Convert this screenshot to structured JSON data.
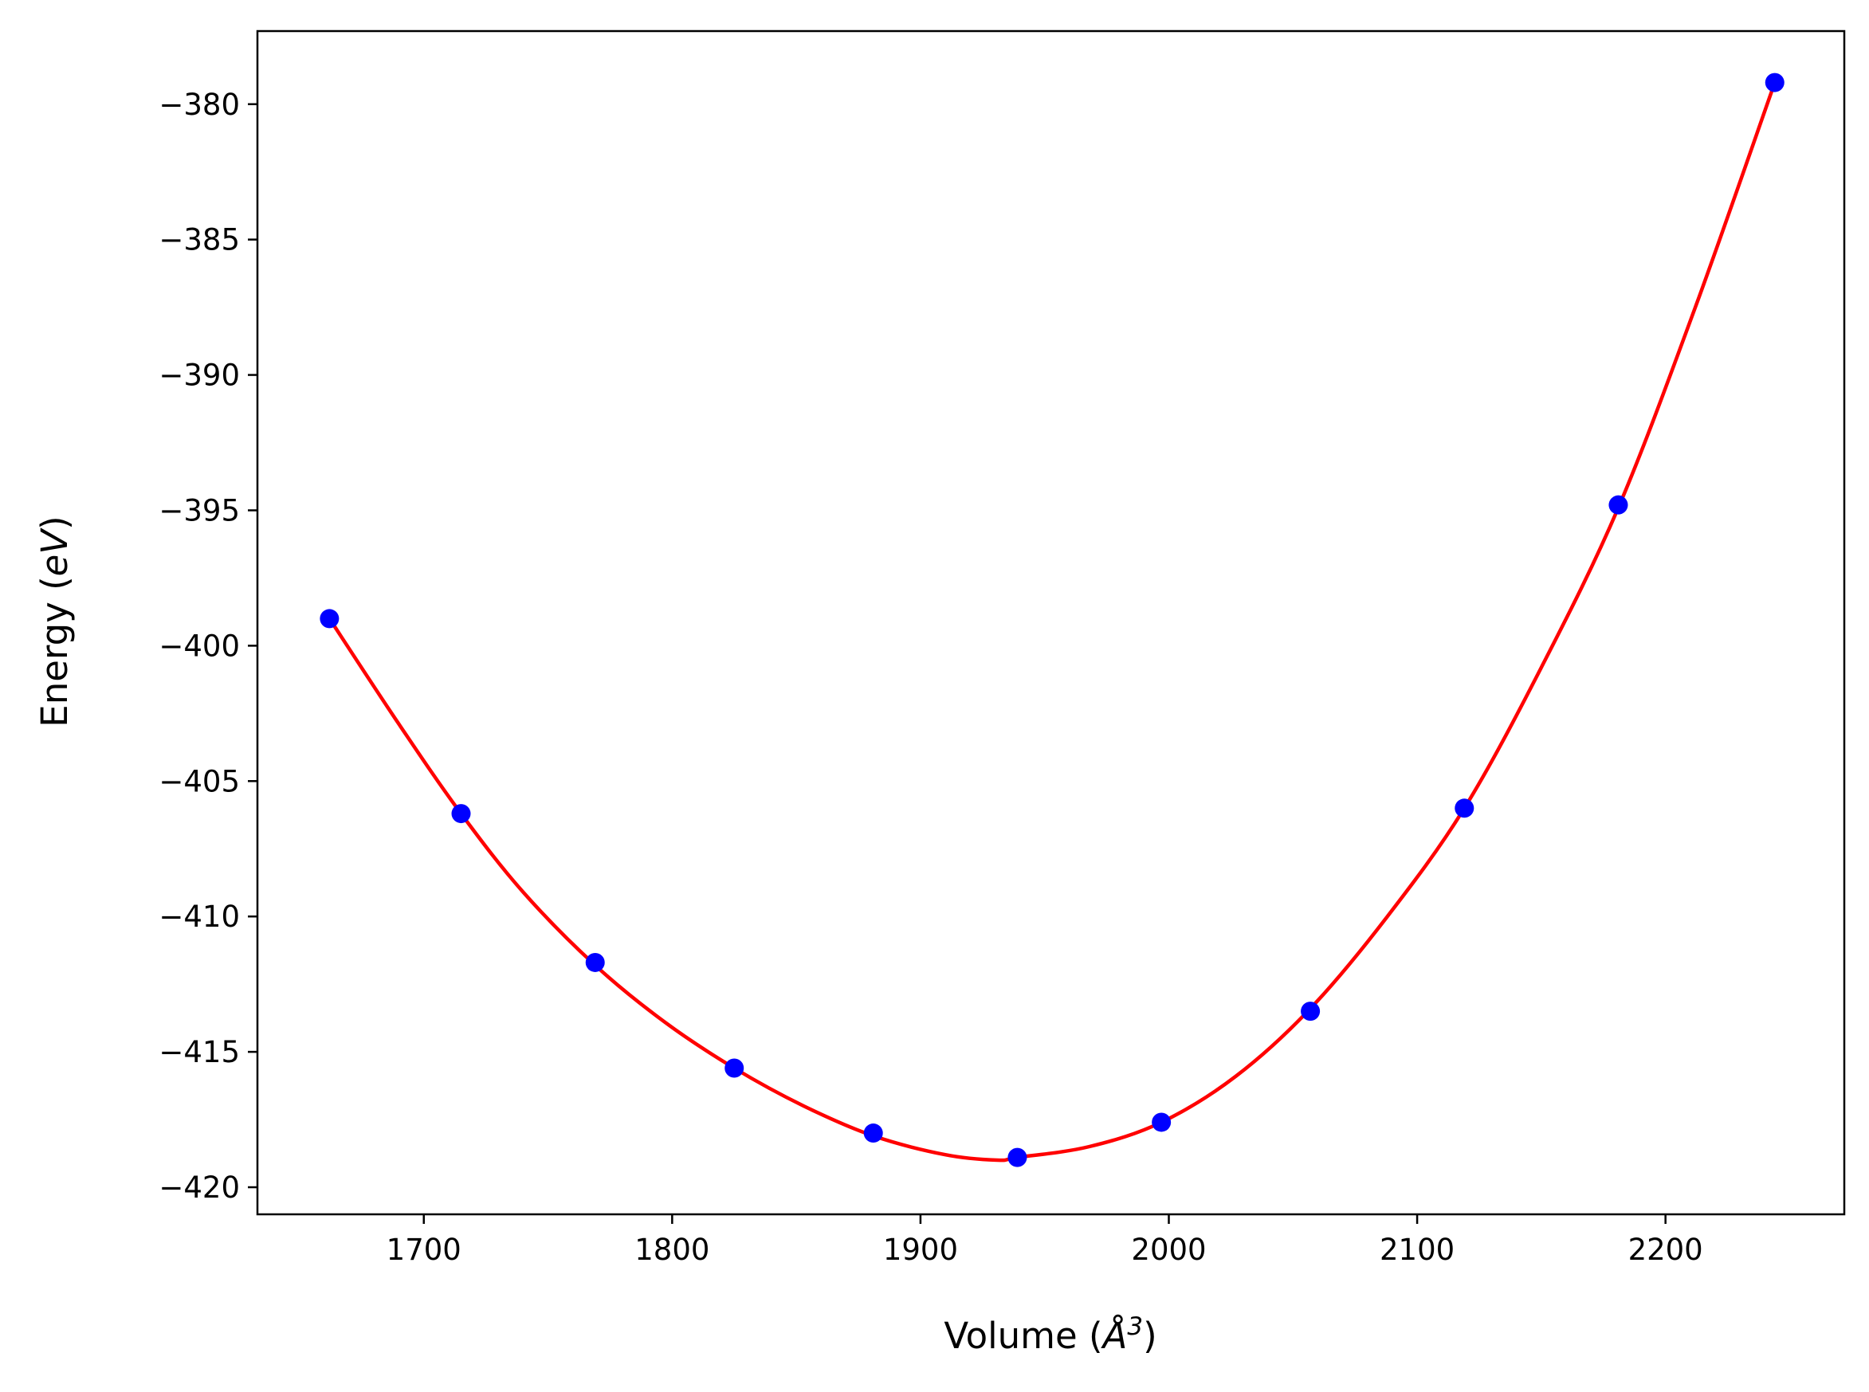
{
  "chart_data": {
    "type": "scatter",
    "xlabel_text": "Volume (",
    "xlabel_symbol": "Å",
    "xlabel_power": "3",
    "xlabel_close": ")",
    "ylabel_text": "Energy (",
    "ylabel_symbol": "eV",
    "ylabel_close": ")",
    "xlim": [
      1633,
      2272
    ],
    "ylim": [
      -421.0,
      -377.3
    ],
    "xticks": [
      1700,
      1800,
      1900,
      2000,
      2100,
      2200
    ],
    "yticks": [
      -380,
      -385,
      -390,
      -395,
      -400,
      -405,
      -410,
      -415,
      -420
    ],
    "series": [
      {
        "kind": "points",
        "color": "#0000ff",
        "x": [
          1662,
          1715,
          1769,
          1825,
          1881,
          1939,
          1997,
          2057,
          2119,
          2181,
          2244
        ],
        "y": [
          -399.0,
          -406.2,
          -411.7,
          -415.6,
          -418.0,
          -418.9,
          -417.6,
          -413.5,
          -406.0,
          -394.8,
          -379.2
        ]
      },
      {
        "kind": "fit",
        "color": "#ff0000",
        "x": [
          1662,
          1690,
          1715,
          1740,
          1769,
          1797,
          1825,
          1853,
          1881,
          1910,
          1931,
          1939,
          1968,
          1997,
          2027,
          2057,
          2088,
          2119,
          2150,
          2181,
          2212,
          2244
        ],
        "y": [
          -399.0,
          -402.9,
          -406.2,
          -409.1,
          -411.8,
          -413.9,
          -415.6,
          -417.0,
          -418.1,
          -418.8,
          -419.0,
          -418.9,
          -418.5,
          -417.6,
          -415.9,
          -413.4,
          -410.0,
          -406.0,
          -400.8,
          -394.9,
          -387.5,
          -379.2
        ]
      }
    ]
  }
}
